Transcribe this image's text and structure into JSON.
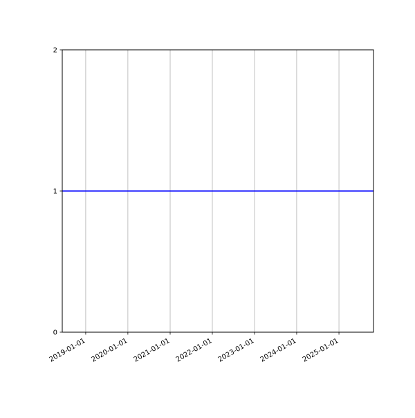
{
  "chart_data": {
    "type": "line",
    "title": "",
    "xlabel": "",
    "ylabel": "",
    "xlim": [
      "2018-06-12",
      "2025-10-27"
    ],
    "ylim": [
      0,
      2
    ],
    "x_ticks": [
      "2019-01-01",
      "2020-01-01",
      "2021-01-01",
      "2022-01-01",
      "2023-01-01",
      "2024-01-01",
      "2025-01-01"
    ],
    "y_ticks": [
      "0",
      "1",
      "2"
    ],
    "grid": "x-axis only (vertical lines)",
    "series": [
      {
        "x": [
          "2018-06-12",
          "2025-10-27"
        ],
        "y": [
          1,
          1
        ],
        "color": "#0000ff"
      }
    ]
  }
}
